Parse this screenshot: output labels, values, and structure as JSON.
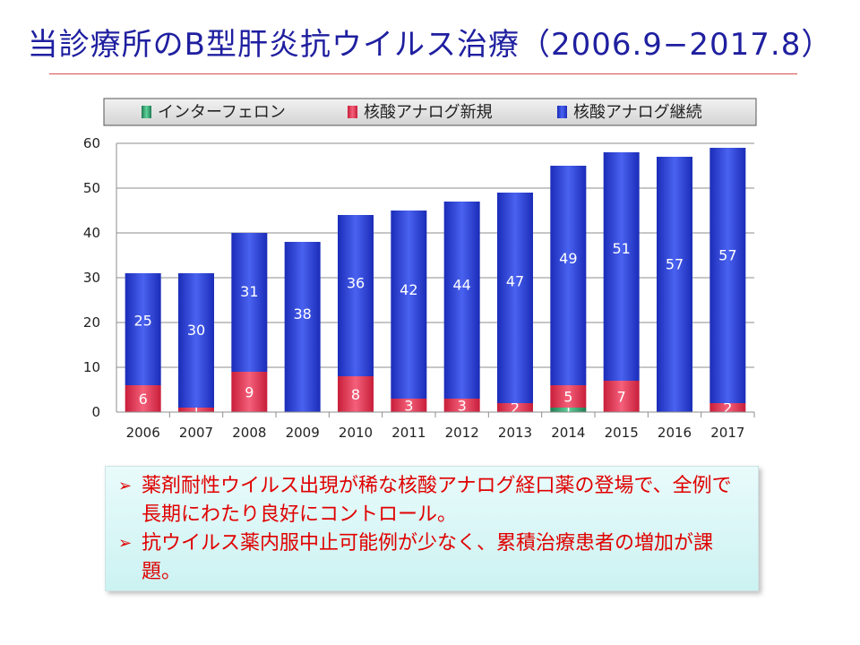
{
  "slide": {
    "title": "当診療所のB型肝炎抗ウイルス治療（2006.9−2017.8）"
  },
  "chart_data": {
    "type": "bar",
    "stacked": true,
    "categories": [
      "2006",
      "2007",
      "2008",
      "2009",
      "2010",
      "2011",
      "2012",
      "2013",
      "2014",
      "2015",
      "2016",
      "2017"
    ],
    "series": [
      {
        "name": "インターフェロン",
        "color": "#2e9e6e",
        "values": [
          0,
          0,
          0,
          0,
          0,
          0,
          0,
          0,
          1,
          0,
          0,
          0
        ],
        "labels": [
          "",
          "",
          "",
          "",
          "",
          "",
          "",
          "",
          "1",
          "",
          "",
          ""
        ]
      },
      {
        "name": "核酸アナログ新規",
        "color": "#e8384f",
        "values": [
          6,
          1,
          9,
          0,
          8,
          3,
          3,
          2,
          5,
          7,
          0,
          2
        ],
        "labels": [
          "6",
          "1",
          "9",
          "",
          "8",
          "3",
          "3",
          "2",
          "5",
          "7",
          "",
          "2"
        ]
      },
      {
        "name": "核酸アナログ継続",
        "color": "#2b3fd6",
        "values": [
          25,
          30,
          31,
          38,
          36,
          42,
          44,
          47,
          49,
          51,
          57,
          57
        ],
        "labels": [
          "25",
          "30",
          "31",
          "38",
          "36",
          "42",
          "44",
          "47",
          "49",
          "51",
          "57",
          "57"
        ]
      }
    ],
    "yticks": [
      "0",
      "10",
      "20",
      "30",
      "40",
      "50",
      "60"
    ],
    "ylim": [
      0,
      60
    ],
    "grid": true,
    "legend_position": "top"
  },
  "notes": [
    {
      "mark": "➢",
      "text": "薬剤耐性ウイルス出現が稀な核酸アナログ経口薬の登場で、全例で長期にわたり良好にコントロール。"
    },
    {
      "mark": "➢",
      "text": "抗ウイルス薬内服中止可能例が少なく、累積治療患者の増加が課題。"
    }
  ]
}
